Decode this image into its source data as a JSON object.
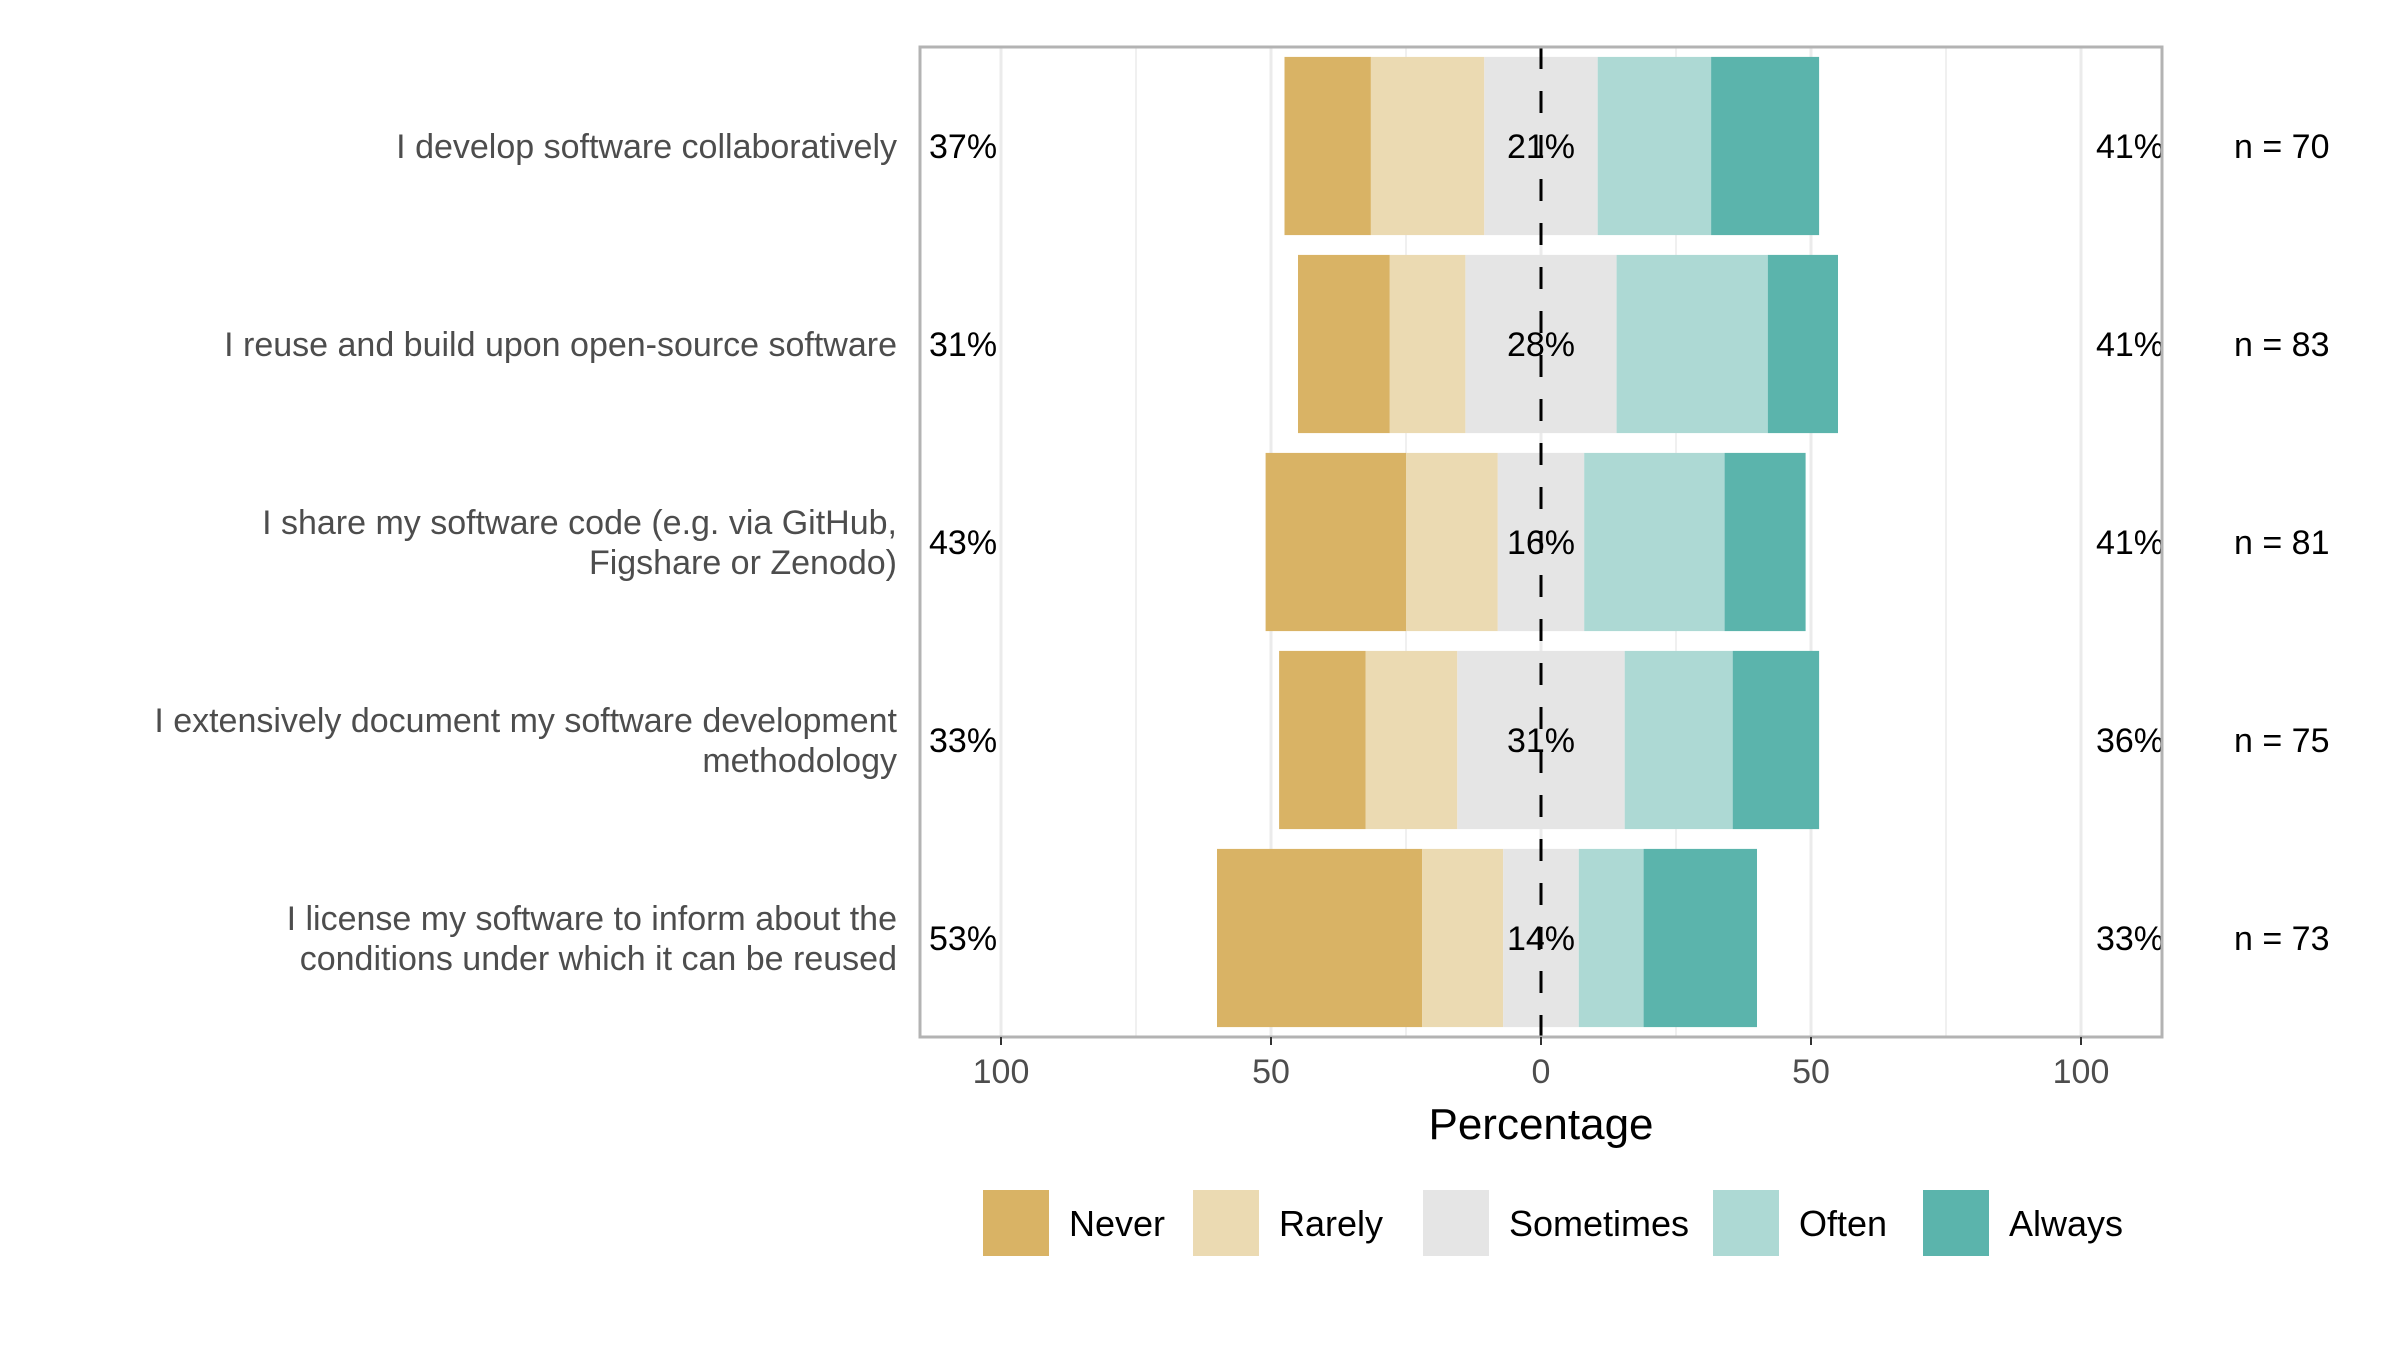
{
  "chart_data": {
    "type": "bar",
    "subtype": "diverging-stacked-likert",
    "xlabel": "Percentage",
    "xlim": [
      -115,
      115
    ],
    "xticks": [
      -100,
      -50,
      0,
      50,
      100
    ],
    "xtick_labels": [
      "100",
      "50",
      "0",
      "50",
      "100"
    ],
    "levels": [
      "Never",
      "Rarely",
      "Sometimes",
      "Often",
      "Always"
    ],
    "colors": [
      "#D9B365",
      "#EBDAB2",
      "#E5E5E5",
      "#ADD9D4",
      "#5BB4AC"
    ],
    "legend_position": "bottom",
    "grid": true,
    "categories": [
      "I develop software collaboratively",
      "I reuse and build upon open-source software",
      "I share my software code (e.g. via GitHub, Figshare or Zenodo)",
      "I extensively document my software development methodology",
      "I license my software to inform about the conditions under which it can be reused"
    ],
    "category_lines": [
      [
        "I develop software collaboratively"
      ],
      [
        "I reuse and build upon open-source software"
      ],
      [
        "I share my software code (e.g. via GitHub,",
        "Figshare or Zenodo)"
      ],
      [
        "I extensively document my software development",
        "methodology"
      ],
      [
        "I license my software to inform about the",
        "conditions under which it can be reused"
      ]
    ],
    "series": [
      {
        "name": "Never",
        "values": [
          16,
          17,
          26,
          16,
          38
        ]
      },
      {
        "name": "Rarely",
        "values": [
          21,
          14,
          17,
          17,
          15
        ]
      },
      {
        "name": "Sometimes",
        "values": [
          21,
          28,
          16,
          31,
          14
        ]
      },
      {
        "name": "Often",
        "values": [
          21,
          28,
          26,
          20,
          12
        ]
      },
      {
        "name": "Always",
        "values": [
          20,
          13,
          15,
          16,
          21
        ]
      }
    ],
    "left_pct_labels": [
      "37%",
      "31%",
      "43%",
      "33%",
      "53%"
    ],
    "center_pct_labels": [
      "21%",
      "28%",
      "16%",
      "31%",
      "14%"
    ],
    "right_pct_labels": [
      "41%",
      "41%",
      "41%",
      "36%",
      "33%"
    ],
    "n_labels": [
      "n = 70",
      "n = 83",
      "n = 81",
      "n = 75",
      "n = 73"
    ]
  }
}
